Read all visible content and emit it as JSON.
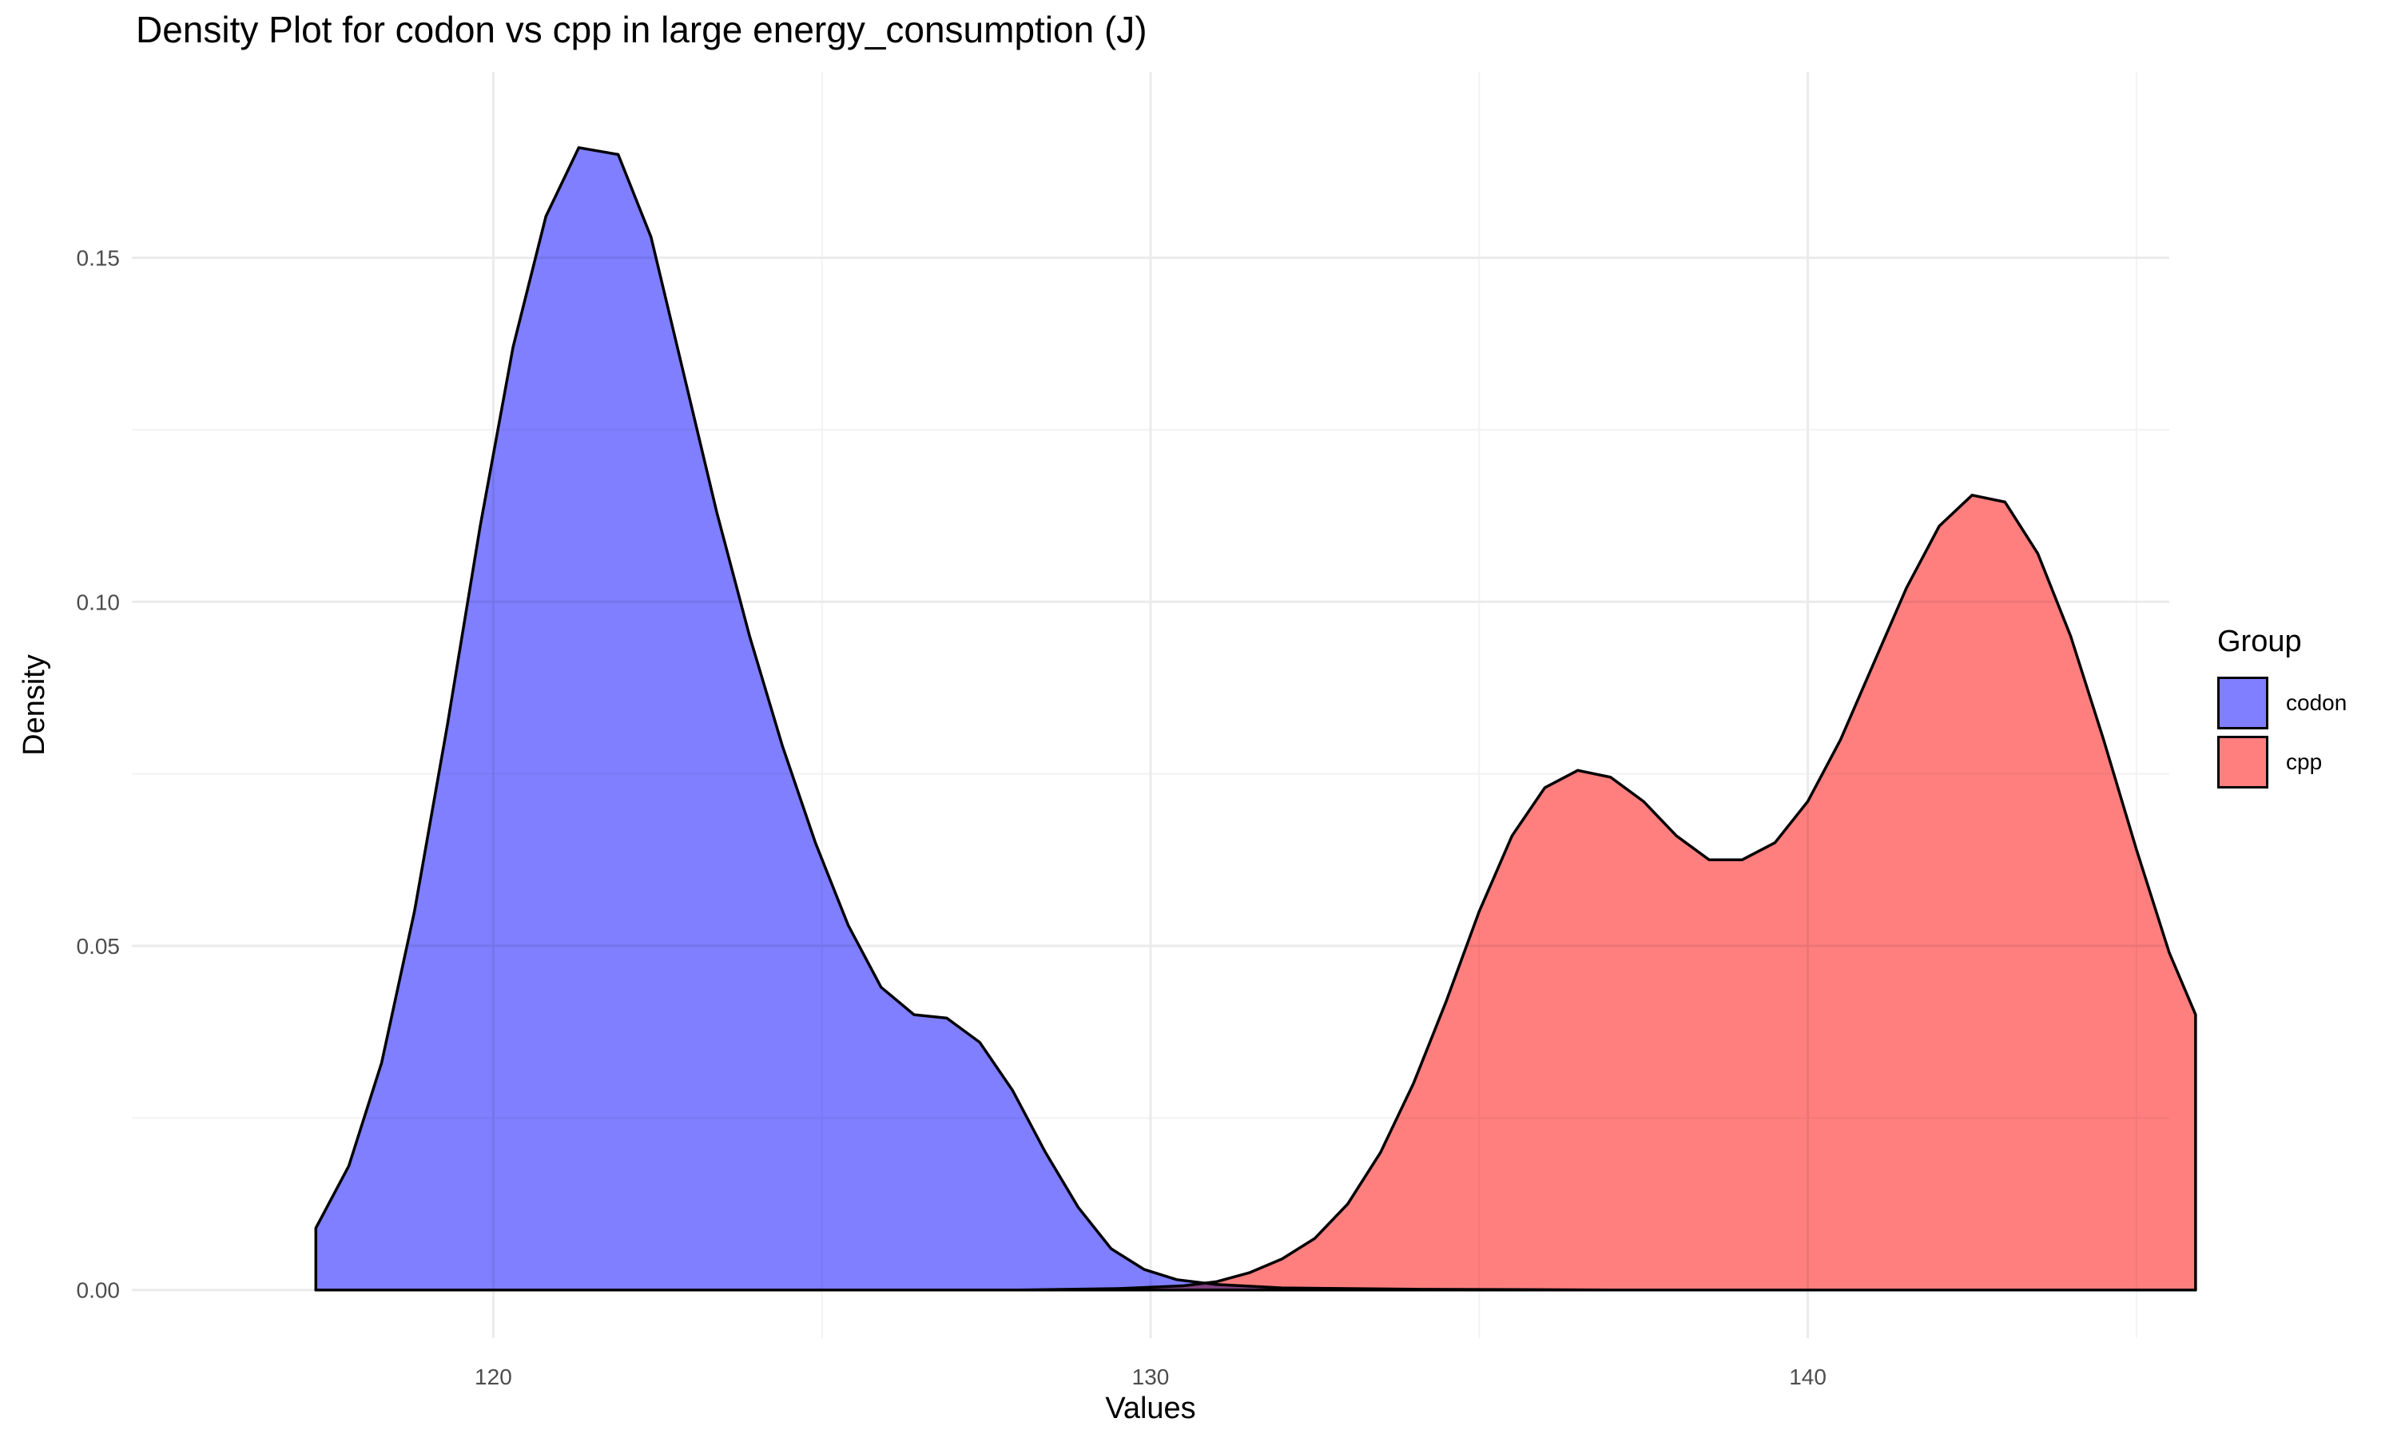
{
  "chart_data": {
    "type": "area",
    "title": "Density Plot for codon vs cpp in large energy_consumption (J)",
    "xlabel": "Values",
    "ylabel": "Density",
    "xlim": [
      114.5,
      145.5
    ],
    "ylim": [
      -0.007,
      0.177
    ],
    "x_ticks": [
      120,
      130,
      140
    ],
    "y_ticks": [
      0.0,
      0.05,
      0.1,
      0.15
    ],
    "x_tick_labels": [
      "120",
      "130",
      "140"
    ],
    "y_tick_labels": [
      "0.00",
      "0.05",
      "0.10",
      "0.15"
    ],
    "grid": true,
    "legend": {
      "title": "Group",
      "placement": "right"
    },
    "series": [
      {
        "name": "codon",
        "color": "#7f7fff",
        "x": [
          117.3,
          117.8,
          118.3,
          118.8,
          119.3,
          119.8,
          120.3,
          120.8,
          121.3,
          121.9,
          122.4,
          122.9,
          123.4,
          123.9,
          124.4,
          124.9,
          125.4,
          125.9,
          126.4,
          126.9,
          127.4,
          127.9,
          128.4,
          128.9,
          129.4,
          129.9,
          130.4,
          131.0,
          132.0,
          134.0,
          137.0,
          140.0,
          143.0,
          145.9
        ],
        "y": [
          0.009,
          0.018,
          0.033,
          0.055,
          0.082,
          0.111,
          0.137,
          0.156,
          0.166,
          0.165,
          0.153,
          0.133,
          0.113,
          0.095,
          0.079,
          0.065,
          0.053,
          0.044,
          0.04,
          0.0395,
          0.036,
          0.029,
          0.02,
          0.012,
          0.006,
          0.003,
          0.0015,
          0.0008,
          0.0003,
          0.0001,
          0.0,
          0.0,
          0.0,
          0.0
        ]
      },
      {
        "name": "cpp",
        "color": "#ff7f7f",
        "x": [
          117.3,
          120.0,
          124.0,
          128.0,
          129.5,
          130.5,
          131.0,
          131.5,
          132.0,
          132.5,
          133.0,
          133.5,
          134.0,
          134.5,
          135.0,
          135.5,
          136.0,
          136.5,
          137.0,
          137.5,
          138.0,
          138.5,
          139.0,
          139.5,
          140.0,
          140.5,
          141.0,
          141.5,
          142.0,
          142.5,
          143.0,
          143.5,
          144.0,
          144.5,
          145.0,
          145.5,
          145.9
        ],
        "y": [
          0.0,
          0.0,
          0.0,
          0.0,
          0.0002,
          0.0006,
          0.0012,
          0.0025,
          0.0045,
          0.0075,
          0.0125,
          0.02,
          0.03,
          0.042,
          0.055,
          0.066,
          0.073,
          0.0755,
          0.0745,
          0.071,
          0.066,
          0.0625,
          0.0625,
          0.065,
          0.071,
          0.08,
          0.091,
          0.102,
          0.111,
          0.1155,
          0.1145,
          0.107,
          0.095,
          0.08,
          0.064,
          0.049,
          0.04
        ]
      }
    ]
  }
}
